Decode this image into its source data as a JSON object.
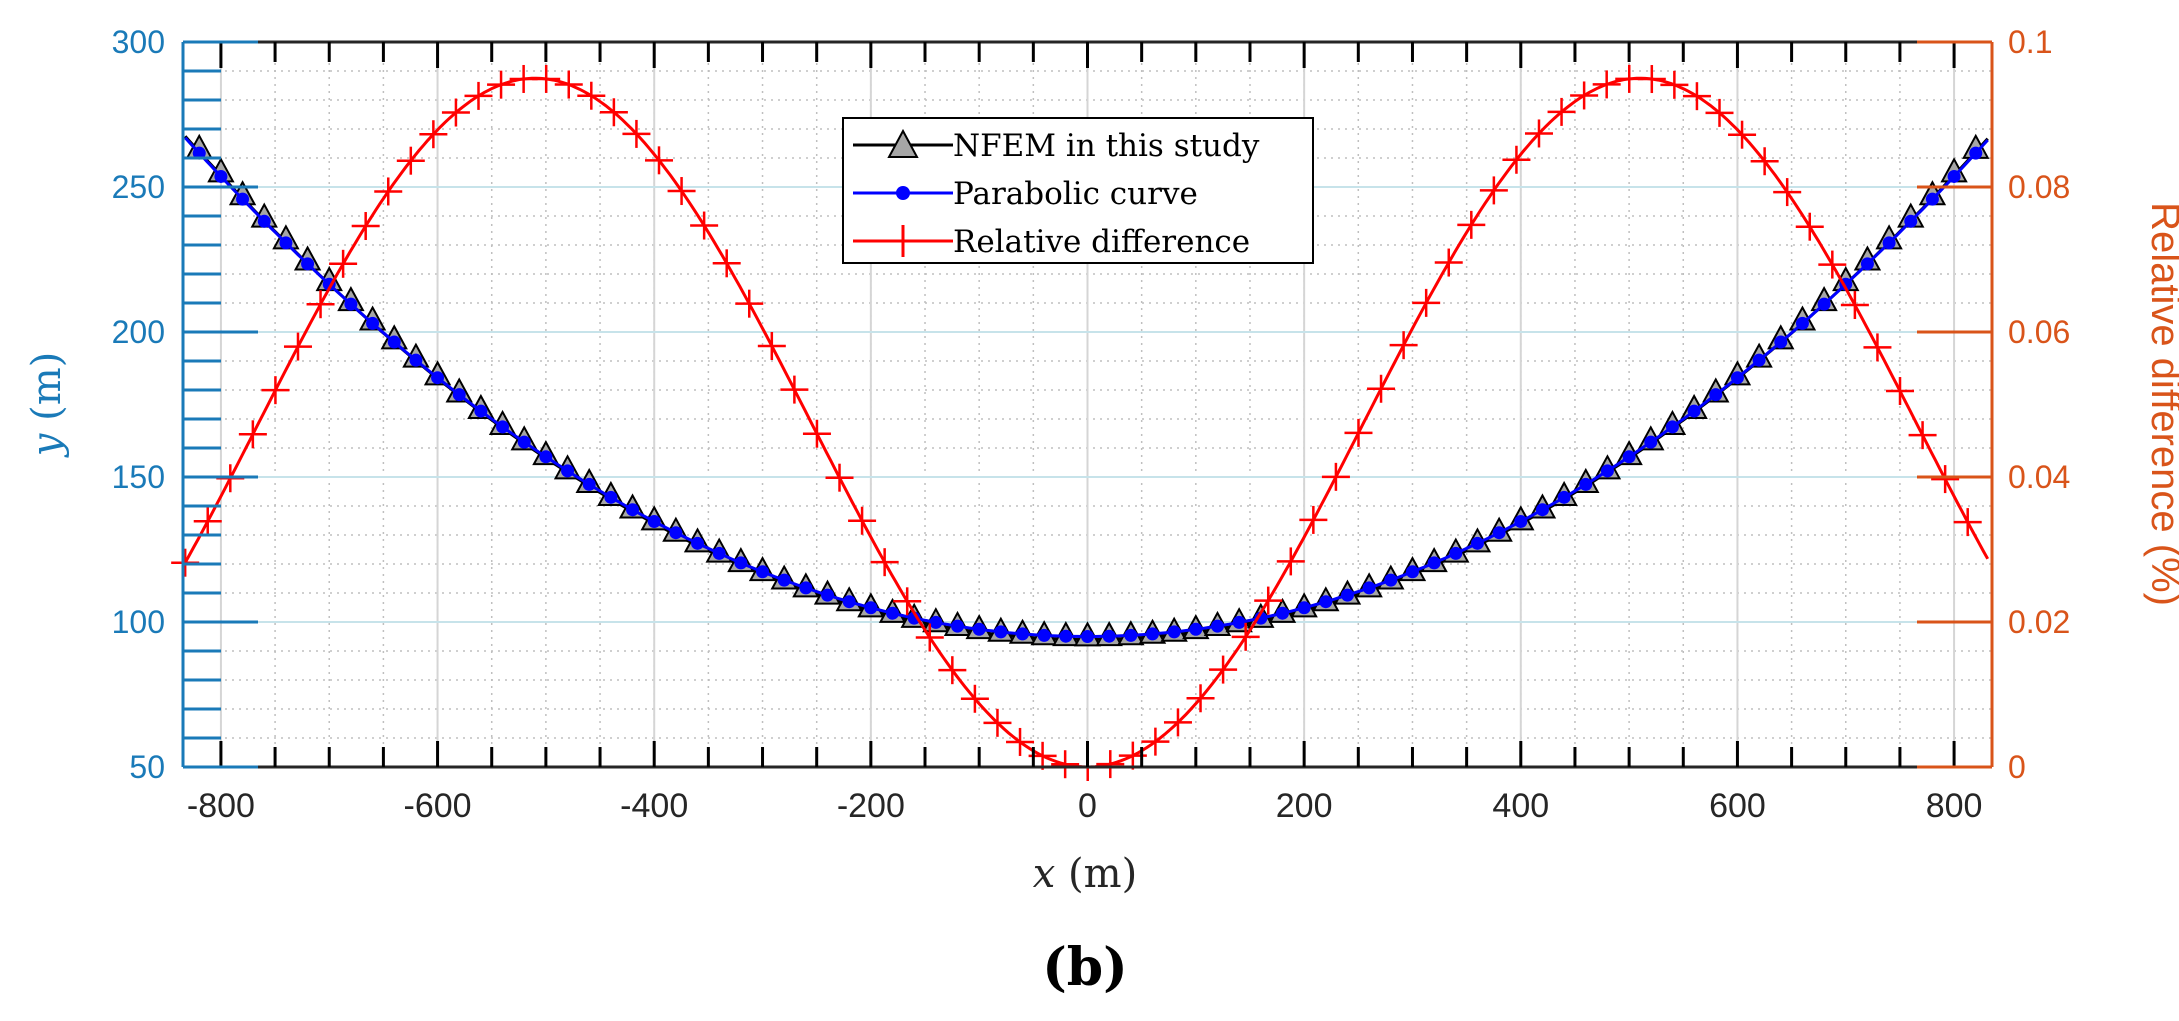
{
  "chart_data": {
    "type": "line",
    "panel_label": "(b)",
    "x_axis": {
      "label_var": "x",
      "label_unit": " (m)",
      "range": [
        -835,
        835
      ],
      "ticks": [
        -800,
        -600,
        -400,
        -200,
        0,
        200,
        400,
        600,
        800
      ],
      "tick_labels": [
        "-800",
        "-600",
        "-400",
        "-200",
        "0",
        "200",
        "400",
        "600",
        "800"
      ],
      "color": "#262626"
    },
    "y_left": {
      "label_var": "y",
      "label_unit": " (m)",
      "range": [
        50,
        300
      ],
      "ticks": [
        50,
        100,
        150,
        200,
        250,
        300
      ],
      "tick_labels": [
        "50",
        "100",
        "150",
        "200",
        "250",
        "300"
      ],
      "color": "#1a7ab8"
    },
    "y_right": {
      "label": "Relative difference (%)",
      "range": [
        0,
        0.1
      ],
      "ticks": [
        0,
        0.02,
        0.04,
        0.06,
        0.08,
        0.1
      ],
      "tick_labels": [
        "0",
        "0.02",
        "0.04",
        "0.06",
        "0.08",
        "0.1"
      ],
      "color": "#d9541a"
    },
    "grid": true,
    "legend": {
      "position": "top-center"
    },
    "series": [
      {
        "name": "NFEM in this study",
        "axis": "left",
        "marker": "triangle",
        "color": "#000000",
        "marker_fill": "#a6a6a6",
        "formula": "y = 94 + 0.0002500 * x^2 (raised line with triangle markers)",
        "x_min": -833,
        "x_max": 833,
        "marker_step": 20,
        "vertex_y": 94,
        "edge_y": 267.5,
        "marker_offset": 3
      },
      {
        "name": "Parabolic curve",
        "axis": "left",
        "marker": "circle",
        "color": "#0000ff",
        "vertex_y": 95,
        "edge_y": 267
      },
      {
        "name": "Relative difference",
        "axis": "right",
        "marker": "plus",
        "color": "#ff0000",
        "peak_value": 0.095,
        "peak_x": 510
      }
    ]
  }
}
